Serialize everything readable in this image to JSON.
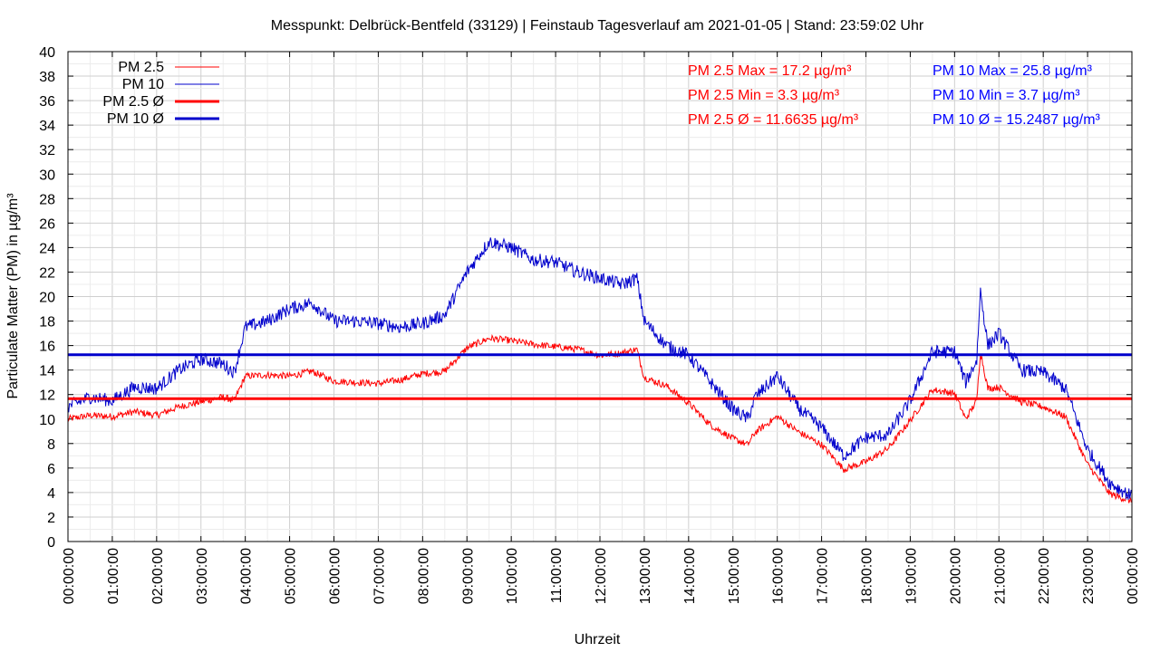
{
  "chart_data": {
    "type": "line",
    "title": "Messpunkt: Delbrück-Bentfeld (33129) | Feinstaub Tagesverlauf am 2021-01-05 | Stand: 23:59:02 Uhr",
    "xlabel": "Uhrzeit",
    "ylabel": "Particulate Matter (PM) in µg/m³",
    "xlim": [
      "00:00:00",
      "24:00:00"
    ],
    "ylim": [
      0,
      40
    ],
    "grid": true,
    "legend_position": "top-left",
    "x_ticks": [
      "00:00:00",
      "01:00:00",
      "02:00:00",
      "03:00:00",
      "04:00:00",
      "05:00:00",
      "06:00:00",
      "07:00:00",
      "08:00:00",
      "09:00:00",
      "10:00:00",
      "11:00:00",
      "12:00:00",
      "13:00:00",
      "14:00:00",
      "15:00:00",
      "16:00:00",
      "17:00:00",
      "18:00:00",
      "19:00:00",
      "20:00:00",
      "21:00:00",
      "22:00:00",
      "23:00:00",
      "00:00:00"
    ],
    "y_ticks": [
      "0",
      "2",
      "4",
      "6",
      "8",
      "10",
      "12",
      "14",
      "16",
      "18",
      "20",
      "22",
      "24",
      "26",
      "28",
      "30",
      "32",
      "34",
      "36",
      "38",
      "40"
    ],
    "series": [
      {
        "name": "PM 2.5",
        "color": "#ff0000",
        "x": [
          "00:00",
          "00:30",
          "01:00",
          "01:30",
          "02:00",
          "02:30",
          "03:00",
          "03:30",
          "03:45",
          "04:00",
          "04:30",
          "05:00",
          "05:30",
          "06:00",
          "06:30",
          "07:00",
          "07:30",
          "08:00",
          "08:30",
          "09:00",
          "09:30",
          "10:00",
          "10:30",
          "11:00",
          "11:30",
          "12:00",
          "12:30",
          "12:50",
          "13:00",
          "13:30",
          "14:00",
          "14:30",
          "15:00",
          "15:20",
          "15:30",
          "16:00",
          "16:30",
          "17:00",
          "17:30",
          "18:00",
          "18:30",
          "19:00",
          "19:30",
          "20:00",
          "20:15",
          "20:30",
          "20:35",
          "20:45",
          "21:00",
          "21:30",
          "22:00",
          "22:30",
          "23:00",
          "23:30",
          "23:59"
        ],
        "values": [
          10.0,
          10.3,
          10.2,
          10.6,
          10.3,
          11.0,
          11.4,
          11.8,
          11.5,
          13.5,
          13.6,
          13.5,
          13.9,
          13.1,
          13.0,
          12.9,
          13.2,
          13.7,
          13.9,
          15.8,
          16.6,
          16.4,
          16.1,
          15.9,
          15.7,
          15.2,
          15.4,
          15.7,
          13.4,
          12.7,
          11.3,
          9.5,
          8.4,
          7.9,
          8.9,
          10.2,
          8.9,
          7.9,
          5.9,
          6.5,
          7.6,
          9.9,
          12.4,
          12.1,
          10.0,
          11.5,
          15.5,
          12.5,
          12.6,
          11.4,
          11.0,
          10.2,
          6.3,
          3.9,
          3.3
        ]
      },
      {
        "name": "PM 10",
        "color": "#0000cc",
        "x": [
          "00:00",
          "00:30",
          "01:00",
          "01:30",
          "02:00",
          "02:30",
          "03:00",
          "03:30",
          "03:45",
          "04:00",
          "04:30",
          "05:00",
          "05:30",
          "06:00",
          "06:30",
          "07:00",
          "07:30",
          "08:00",
          "08:30",
          "09:00",
          "09:30",
          "10:00",
          "10:30",
          "11:00",
          "11:30",
          "12:00",
          "12:30",
          "12:50",
          "13:00",
          "13:30",
          "14:00",
          "14:30",
          "15:00",
          "15:20",
          "15:30",
          "16:00",
          "16:30",
          "17:00",
          "17:30",
          "18:00",
          "18:30",
          "19:00",
          "19:30",
          "20:00",
          "20:15",
          "20:30",
          "20:35",
          "20:45",
          "21:00",
          "21:30",
          "22:00",
          "22:30",
          "23:00",
          "23:30",
          "23:59"
        ],
        "values": [
          11.0,
          11.8,
          11.5,
          12.6,
          12.5,
          14.0,
          14.9,
          14.5,
          13.8,
          17.5,
          18.0,
          19.0,
          19.5,
          18.0,
          18.0,
          17.8,
          17.5,
          17.8,
          18.5,
          22.0,
          24.5,
          24.0,
          23.0,
          22.8,
          22.0,
          21.5,
          21.0,
          21.5,
          18.0,
          16.0,
          15.2,
          13.0,
          10.8,
          10.0,
          11.8,
          13.5,
          10.8,
          9.3,
          7.0,
          8.5,
          8.7,
          11.5,
          15.5,
          15.5,
          13.0,
          14.8,
          20.5,
          16.0,
          17.0,
          14.0,
          13.8,
          12.5,
          7.5,
          4.8,
          3.7
        ]
      },
      {
        "name": "PM 2.5 Ø",
        "color": "#ff0000",
        "value": 11.6635
      },
      {
        "name": "PM 10 Ø",
        "color": "#0000cc",
        "value": 15.2487
      }
    ],
    "annotations": [
      {
        "text": "PM 2.5 Max = 17.2 µg/m³",
        "color": "#ff0000"
      },
      {
        "text": "PM 2.5 Min = 3.3 µg/m³",
        "color": "#ff0000"
      },
      {
        "text": "PM 2.5 Ø = 11.6635 µg/m³",
        "color": "#ff0000"
      },
      {
        "text": "PM 10 Max = 25.8 µg/m³",
        "color": "#0000ff"
      },
      {
        "text": "PM 10 Min = 3.7 µg/m³",
        "color": "#0000ff"
      },
      {
        "text": "PM 10 Ø = 15.2487 µg/m³",
        "color": "#0000ff"
      }
    ]
  }
}
